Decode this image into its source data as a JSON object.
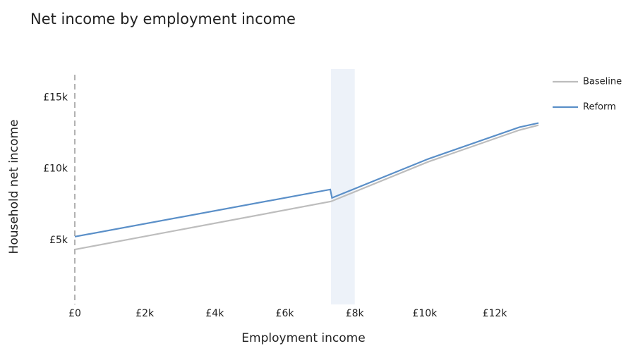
{
  "chart_data": {
    "type": "line",
    "title": "Net income by employment income",
    "x_label": "Employment income",
    "y_label": "Household net income",
    "xlim": [
      0,
      13250
    ],
    "ylim": [
      500,
      17000
    ],
    "xticks": [
      {
        "value": 0,
        "label": "£0"
      },
      {
        "value": 2000,
        "label": "£2k"
      },
      {
        "value": 4000,
        "label": "£4k"
      },
      {
        "value": 6000,
        "label": "£6k"
      },
      {
        "value": 8000,
        "label": "£8k"
      },
      {
        "value": 10000,
        "label": "£10k"
      },
      {
        "value": 12000,
        "label": "£12k"
      }
    ],
    "yticks": [
      {
        "value": 5000,
        "label": "£5k"
      },
      {
        "value": 10000,
        "label": "£10k"
      },
      {
        "value": 15000,
        "label": "£15k"
      }
    ],
    "shaded_xrange": [
      7320,
      8000
    ],
    "shaded_color": "#edf2f9",
    "zero_line_x": 0,
    "grid": false,
    "legend_position": "top-right",
    "series": [
      {
        "name": "Baseline",
        "color": "#bdbdbd",
        "x": [
          0,
          7320,
          10100,
          12700,
          13250
        ],
        "values": [
          4350,
          7720,
          10500,
          12720,
          13070
        ]
      },
      {
        "name": "Reform",
        "color": "#5a8fc8",
        "x": [
          0,
          7300,
          7350,
          10100,
          12700,
          13250
        ],
        "values": [
          5250,
          8560,
          7970,
          10700,
          12920,
          13220
        ]
      }
    ]
  }
}
